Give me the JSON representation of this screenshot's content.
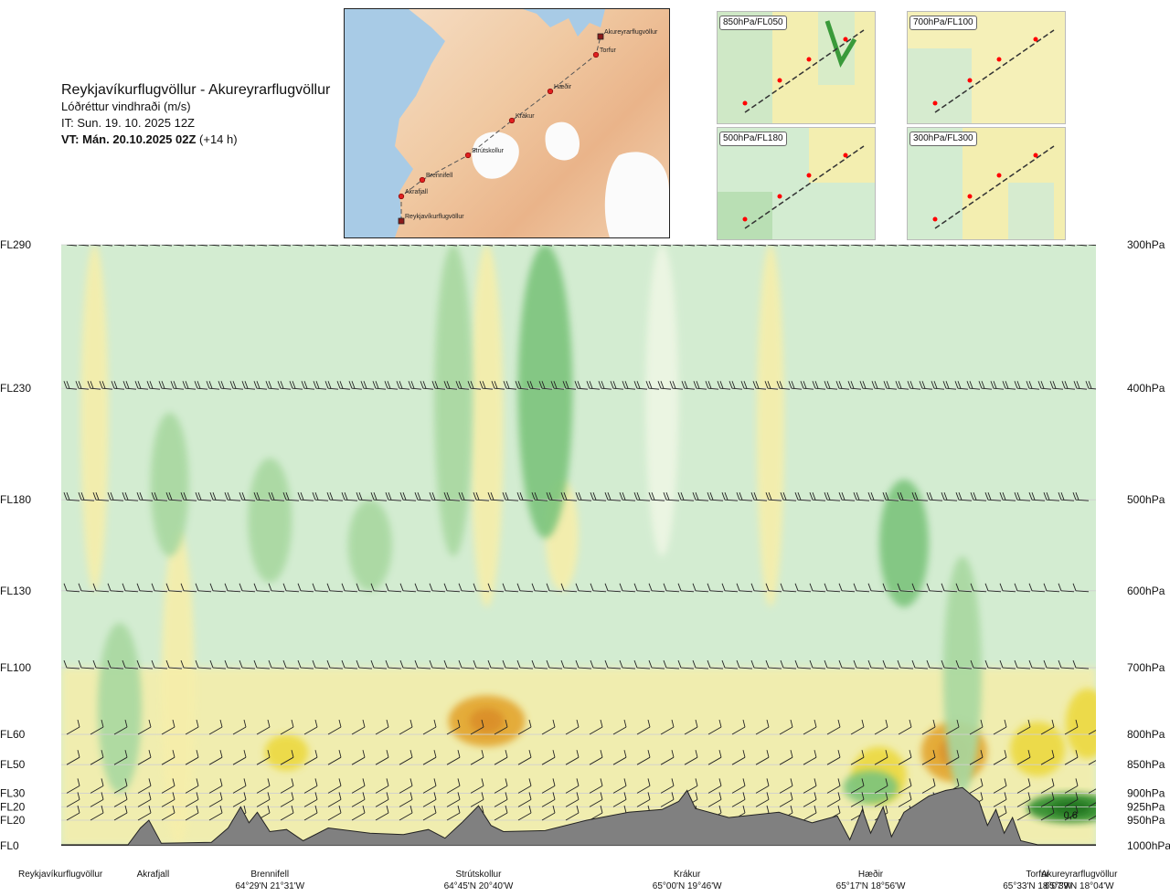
{
  "header": {
    "title": "Reykjavíkurflugvöllur - Akureyrarflugvöllur",
    "subtitle": "Lóðréttur vindhraði (m/s)",
    "issue_time": "IT: Sun. 19. 10. 2025 12Z",
    "valid_prefix": "VT: Mán. 20.10.2025 02Z",
    "valid_offset": " (+14 h)"
  },
  "route_map": {
    "waypoints": [
      "Akureyrarflugvöllur",
      "Torfur",
      "Hæðir",
      "Krákur",
      "Strútskollur",
      "Brennifell",
      "Akrafjall",
      "Reykjavíkurflugvöllur"
    ]
  },
  "level_maps": [
    {
      "label": "850hPa/FL050"
    },
    {
      "label": "700hPa/FL100"
    },
    {
      "label": "500hPa/FL180"
    },
    {
      "label": "300hPa/FL300"
    }
  ],
  "colors": {
    "strong_up": "#2a8a2a",
    "up_mid": "#7cc47c",
    "up_weak": "#a8d8a0",
    "neutral_green": "#d3ecd1",
    "neutral_light": "#eef6e4",
    "down_weak": "#f6eeaa",
    "down_mid": "#ecd940",
    "down_strong": "#e3a52e",
    "terrain": "#808080"
  },
  "chart_data": {
    "type": "heatmap",
    "title": "Reykjavíkurflugvöllur - Akureyrarflugvöllur",
    "variable": "Lóðréttur vindhraði (m/s)",
    "x_locations": [
      {
        "name": "Reykjavíkurflugvöllur",
        "coord": "",
        "km": 0
      },
      {
        "name": "Akrafjall",
        "coord": "",
        "km": 11
      },
      {
        "name": "Brennifell",
        "coord": "64°29'N 21°31'W",
        "km": 25
      },
      {
        "name": "Strútskollur",
        "coord": "64°45'N 20°40'W",
        "km": 50
      },
      {
        "name": "Krákur",
        "coord": "65°00'N 19°46'W",
        "km": 75
      },
      {
        "name": "Hæðir",
        "coord": "65°17'N 18°56'W",
        "km": 97
      },
      {
        "name": "Torfur",
        "coord": "65°33'N 18°07'W",
        "km": 117
      },
      {
        "name": "Akureyrarflugvöllur",
        "coord": "65°39'N 18°04'W",
        "km": 122
      }
    ],
    "x_range": [
      0,
      124
    ],
    "levels": [
      {
        "fl": "FL0",
        "hpa": "1000hPa",
        "p": 1000
      },
      {
        "fl": "FL20",
        "hpa": "950hPa",
        "p": 950
      },
      {
        "fl": "FL20",
        "hpa": "925hPa",
        "p": 925
      },
      {
        "fl": "FL30",
        "hpa": "900hPa",
        "p": 900
      },
      {
        "fl": "FL50",
        "hpa": "850hPa",
        "p": 850
      },
      {
        "fl": "FL60",
        "hpa": "800hPa",
        "p": 800
      },
      {
        "fl": "FL100",
        "hpa": "700hPa",
        "p": 700
      },
      {
        "fl": "FL130",
        "hpa": "600hPa",
        "p": 600
      },
      {
        "fl": "FL180",
        "hpa": "500hPa",
        "p": 500
      },
      {
        "fl": "FL230",
        "hpa": "400hPa",
        "p": 400
      },
      {
        "fl": "FL290",
        "hpa": "300hPa",
        "p": 300
      }
    ],
    "annotation": {
      "text": "0,6",
      "km": 121,
      "p": 940
    },
    "terrain_hpa": [
      {
        "km": 0,
        "p": 998
      },
      {
        "km": 8,
        "p": 998
      },
      {
        "km": 9.5,
        "p": 965
      },
      {
        "km": 10.5,
        "p": 950
      },
      {
        "km": 12,
        "p": 995
      },
      {
        "km": 18,
        "p": 993
      },
      {
        "km": 20,
        "p": 965
      },
      {
        "km": 21.5,
        "p": 925
      },
      {
        "km": 22.5,
        "p": 955
      },
      {
        "km": 23.5,
        "p": 935
      },
      {
        "km": 25,
        "p": 972
      },
      {
        "km": 27,
        "p": 968
      },
      {
        "km": 29,
        "p": 990
      },
      {
        "km": 32,
        "p": 965
      },
      {
        "km": 37,
        "p": 975
      },
      {
        "km": 41,
        "p": 978
      },
      {
        "km": 44,
        "p": 968
      },
      {
        "km": 46,
        "p": 985
      },
      {
        "km": 48,
        "p": 955
      },
      {
        "km": 50,
        "p": 923
      },
      {
        "km": 51.5,
        "p": 960
      },
      {
        "km": 53,
        "p": 972
      },
      {
        "km": 58,
        "p": 970
      },
      {
        "km": 63,
        "p": 950
      },
      {
        "km": 68,
        "p": 935
      },
      {
        "km": 72,
        "p": 930
      },
      {
        "km": 74,
        "p": 915
      },
      {
        "km": 75,
        "p": 895
      },
      {
        "km": 76,
        "p": 928
      },
      {
        "km": 80,
        "p": 945
      },
      {
        "km": 86,
        "p": 935
      },
      {
        "km": 90,
        "p": 955
      },
      {
        "km": 93,
        "p": 942
      },
      {
        "km": 94.5,
        "p": 988
      },
      {
        "km": 96,
        "p": 930
      },
      {
        "km": 97,
        "p": 975
      },
      {
        "km": 98.5,
        "p": 925
      },
      {
        "km": 99.5,
        "p": 982
      },
      {
        "km": 101,
        "p": 935
      },
      {
        "km": 104,
        "p": 905
      },
      {
        "km": 106,
        "p": 895
      },
      {
        "km": 108,
        "p": 890
      },
      {
        "km": 110,
        "p": 915
      },
      {
        "km": 111,
        "p": 960
      },
      {
        "km": 112,
        "p": 930
      },
      {
        "km": 113,
        "p": 975
      },
      {
        "km": 114,
        "p": 945
      },
      {
        "km": 115,
        "p": 990
      },
      {
        "km": 117,
        "p": 998
      },
      {
        "km": 124,
        "p": 998
      }
    ],
    "updraft_cells": [
      {
        "km": 7,
        "p_top": 640,
        "p_bottom": 900,
        "w": 0.2
      },
      {
        "km": 13,
        "p_top": 420,
        "p_bottom": 560,
        "w": 0.15
      },
      {
        "km": 25,
        "p_top": 460,
        "p_bottom": 590,
        "w": 0.2
      },
      {
        "km": 37,
        "p_top": 500,
        "p_bottom": 600,
        "w": 0.2
      },
      {
        "km": 47,
        "p_top": 300,
        "p_bottom": 560,
        "w": 0.15
      },
      {
        "km": 58,
        "p_top": 300,
        "p_bottom": 540,
        "w": 0.3
      },
      {
        "km": 72,
        "p_top": 300,
        "p_bottom": 560,
        "w": 0.1
      },
      {
        "km": 101,
        "p_top": 480,
        "p_bottom": 620,
        "w": 0.25
      },
      {
        "km": 108,
        "p_top": 560,
        "p_bottom": 900,
        "w": 0.15
      },
      {
        "km": 97,
        "p_top": 860,
        "p_bottom": 920,
        "w": 0.3
      },
      {
        "km": 121,
        "p_top": 900,
        "p_bottom": 955,
        "w": 0.6
      }
    ],
    "downdraft_cells": [
      {
        "km": 4,
        "p_top": 300,
        "p_bottom": 600,
        "w": -0.05
      },
      {
        "km": 14,
        "p_top": 530,
        "p_bottom": 1000,
        "w": -0.1
      },
      {
        "km": 27,
        "p_top": 800,
        "p_bottom": 860,
        "w": -0.2
      },
      {
        "km": 51,
        "p_top": 740,
        "p_bottom": 820,
        "w": -0.5
      },
      {
        "km": 51,
        "p_top": 300,
        "p_bottom": 620,
        "w": -0.1
      },
      {
        "km": 60,
        "p_top": 480,
        "p_bottom": 600,
        "w": -0.1
      },
      {
        "km": 85,
        "p_top": 300,
        "p_bottom": 620,
        "w": -0.05
      },
      {
        "km": 98,
        "p_top": 820,
        "p_bottom": 920,
        "w": -0.3
      },
      {
        "km": 107,
        "p_top": 780,
        "p_bottom": 880,
        "w": -0.4
      },
      {
        "km": 117,
        "p_top": 780,
        "p_bottom": 870,
        "w": -0.3
      },
      {
        "km": 123,
        "p_top": 730,
        "p_bottom": 840,
        "w": -0.2
      }
    ]
  }
}
